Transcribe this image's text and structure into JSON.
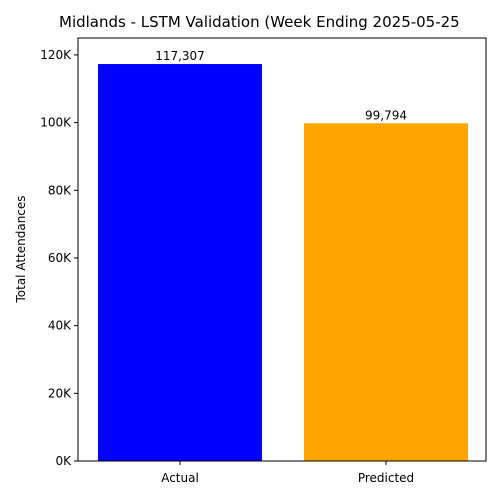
{
  "chart_data": {
    "type": "bar",
    "title": "Midlands - LSTM Validation (Week Ending 2025-05-25",
    "xlabel": "",
    "ylabel": "Total Attendances",
    "ylim": [
      0,
      125000
    ],
    "yticks": [
      0,
      20000,
      40000,
      60000,
      80000,
      100000,
      120000
    ],
    "ytick_labels": [
      "0K",
      "20K",
      "40K",
      "60K",
      "80K",
      "100K",
      "120K"
    ],
    "categories": [
      "Actual",
      "Predicted"
    ],
    "values": [
      117307,
      99794
    ],
    "value_labels": [
      "117,307",
      "99,794"
    ],
    "colors": [
      "#0000ff",
      "#ffa500"
    ],
    "grid": false,
    "legend": "none"
  }
}
